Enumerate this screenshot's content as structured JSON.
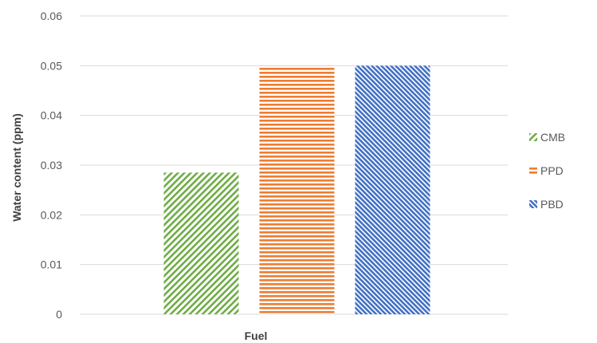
{
  "chart_data": {
    "type": "bar",
    "title": "",
    "xlabel": "Fuel",
    "ylabel": "Water content (ppm)",
    "categories": [
      "Fuel"
    ],
    "ylim": [
      0,
      0.06
    ],
    "yticks": [
      0,
      0.01,
      0.02,
      0.03,
      0.04,
      0.05,
      0.06
    ],
    "ytick_labels": [
      "0",
      "0.01",
      "0.02",
      "0.03",
      "0.04",
      "0.05",
      "0.06"
    ],
    "grid": true,
    "legend_position": "right",
    "series": [
      {
        "name": "CMB",
        "values": [
          0.0285
        ],
        "color": "#70ad47",
        "pattern": "diagonal-up"
      },
      {
        "name": "PPD",
        "values": [
          0.05
        ],
        "color": "#ed7d31",
        "pattern": "horizontal"
      },
      {
        "name": "PBD",
        "values": [
          0.05
        ],
        "color": "#4472c4",
        "pattern": "diagonal-down"
      }
    ]
  }
}
